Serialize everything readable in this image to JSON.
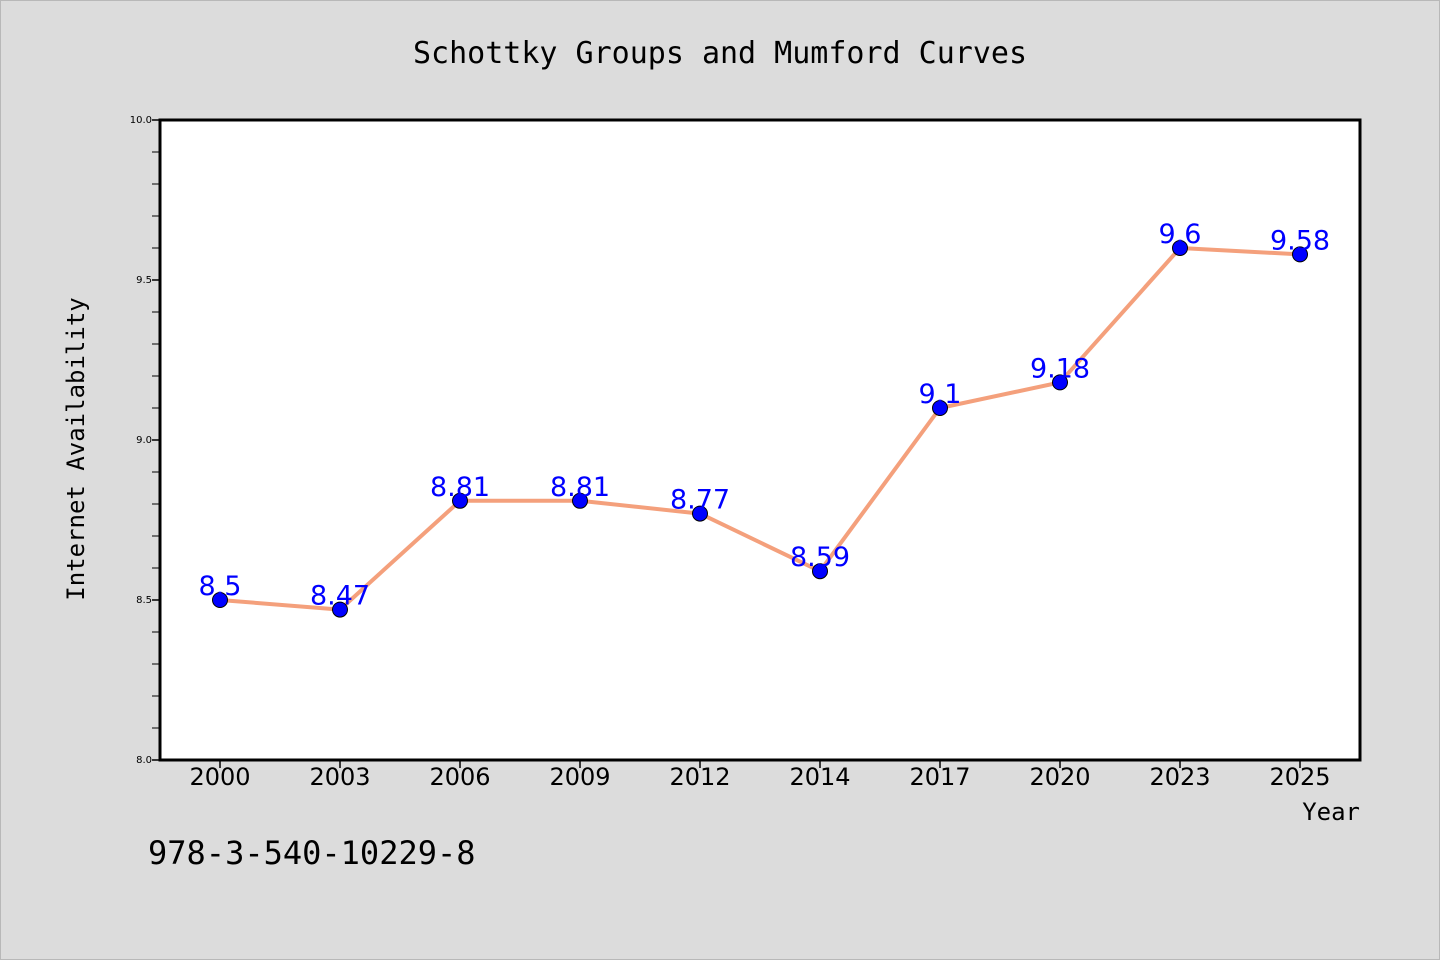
{
  "chart_data": {
    "type": "line",
    "title": "Schottky Groups and Mumford Curves",
    "xlabel": "Year",
    "ylabel": "Internet Availability",
    "categories": [
      "2000",
      "2003",
      "2006",
      "2009",
      "2012",
      "2014",
      "2017",
      "2020",
      "2023",
      "2025"
    ],
    "series": [
      {
        "values": [
          8.5,
          8.47,
          8.81,
          8.81,
          8.77,
          8.59,
          9.1,
          9.18,
          9.6,
          9.58
        ],
        "data_labels": [
          "8.5",
          "8.47",
          "8.81",
          "8.81",
          "8.77",
          "8.59",
          "9.1",
          "9.18",
          "9.6",
          "9.58"
        ],
        "line_color": "#f4a07c",
        "marker_color": "#0000ff"
      }
    ],
    "ylim": [
      8.0,
      10.0
    ],
    "y_ticks": [
      "8.0",
      "8.5",
      "9.0",
      "9.5",
      "10.0"
    ],
    "y_tick_values": [
      8.0,
      8.5,
      9.0,
      9.5,
      10.0
    ],
    "y_minor_step": 0.1,
    "grid": false,
    "legend": "none",
    "data_label_color": "#0000ff",
    "background_color": "#dcdcdc",
    "plot_background_color": "#ffffff"
  },
  "footnote": "978-3-540-10229-8"
}
